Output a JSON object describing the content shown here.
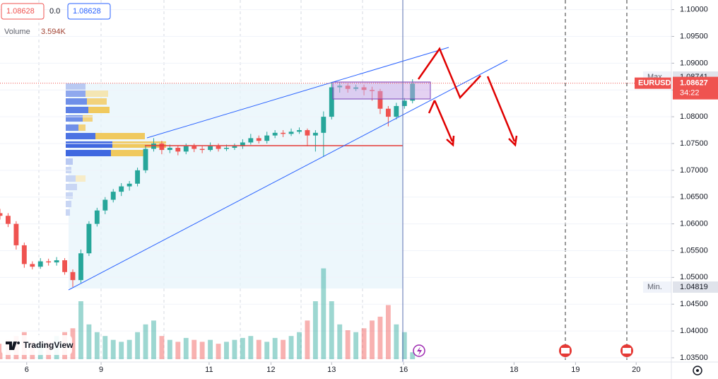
{
  "header": {
    "ohlc_open": "1.08628",
    "change": "0.0",
    "ohlc_close": "1.08628",
    "volume_label": "Volume",
    "volume_value": "3.594K",
    "logo": "TradingView"
  },
  "chart_data": {
    "type": "candlestick",
    "symbol": "EURUSD",
    "countdown": "34:22",
    "x": [
      0,
      2,
      4,
      6,
      8,
      10,
      12,
      14,
      16,
      18,
      20,
      22,
      24,
      26,
      28,
      30,
      32,
      34,
      36,
      38,
      40,
      42,
      44,
      46,
      48,
      50,
      52,
      54,
      56,
      58,
      60,
      62,
      64,
      66,
      68,
      70,
      72,
      74,
      76,
      78,
      80,
      82,
      84,
      86,
      88,
      90,
      92,
      94,
      96,
      98,
      100,
      102
    ],
    "open": [
      1.062,
      1.0615,
      1.06,
      1.056,
      1.0525,
      1.052,
      1.053,
      1.0528,
      1.0532,
      1.051,
      1.0495,
      1.0545,
      1.06,
      1.0625,
      1.0645,
      1.066,
      1.067,
      1.0675,
      1.07,
      1.074,
      1.075,
      1.0738,
      1.0742,
      1.0735,
      1.0745,
      1.074,
      1.0738,
      1.0745,
      1.074,
      1.0742,
      1.0745,
      1.0752,
      1.076,
      1.0755,
      1.0765,
      1.077,
      1.0768,
      1.0772,
      1.0775,
      1.0765,
      1.077,
      1.08,
      1.0855,
      1.0858,
      1.0852,
      1.0855,
      1.085,
      1.0848,
      1.0815,
      1.08,
      1.082,
      1.083
    ],
    "high": [
      1.0628,
      1.062,
      1.0605,
      1.0565,
      1.053,
      1.0536,
      1.0535,
      1.0538,
      1.0536,
      1.0515,
      1.0552,
      1.0605,
      1.063,
      1.065,
      1.0665,
      1.0676,
      1.068,
      1.0705,
      1.0745,
      1.076,
      1.0755,
      1.0748,
      1.0746,
      1.075,
      1.075,
      1.0745,
      1.0752,
      1.075,
      1.0748,
      1.075,
      1.0758,
      1.0768,
      1.0765,
      1.0772,
      1.0775,
      1.0775,
      1.0778,
      1.078,
      1.0778,
      1.0775,
      1.081,
      1.0865,
      1.0865,
      1.0862,
      1.086,
      1.086,
      1.0856,
      1.0852,
      1.082,
      1.0826,
      1.0835,
      1.087
    ],
    "low": [
      1.0608,
      1.0594,
      1.0552,
      1.0518,
      1.0515,
      1.0516,
      1.0522,
      1.0522,
      1.0505,
      1.0482,
      1.049,
      1.054,
      1.0595,
      1.0618,
      1.064,
      1.0652,
      1.0662,
      1.067,
      1.0695,
      1.0735,
      1.073,
      1.0732,
      1.0728,
      1.073,
      1.0734,
      1.0732,
      1.0735,
      1.0735,
      1.0736,
      1.0738,
      1.074,
      1.0748,
      1.075,
      1.075,
      1.076,
      1.0762,
      1.0764,
      1.0768,
      1.0745,
      1.0735,
      1.0725,
      1.0795,
      1.0845,
      1.0845,
      1.0848,
      1.084,
      1.083,
      1.0805,
      1.0782,
      1.0795,
      1.0815,
      1.0825
    ],
    "close": [
      1.0615,
      1.06,
      1.056,
      1.0525,
      1.052,
      1.053,
      1.0528,
      1.0532,
      1.051,
      1.0495,
      1.0545,
      1.06,
      1.0625,
      1.0645,
      1.066,
      1.067,
      1.0675,
      1.07,
      1.074,
      1.075,
      1.0738,
      1.0742,
      1.0735,
      1.0745,
      1.074,
      1.0738,
      1.0745,
      1.074,
      1.0742,
      1.0745,
      1.0752,
      1.076,
      1.0755,
      1.0765,
      1.077,
      1.0768,
      1.0772,
      1.0775,
      1.0765,
      1.077,
      1.08,
      1.0855,
      1.0858,
      1.0852,
      1.0855,
      1.085,
      1.0848,
      1.0815,
      1.08,
      1.082,
      1.083,
      1.0862
    ],
    "volume": [
      8,
      10,
      12,
      14,
      9,
      8,
      9,
      12,
      14,
      16,
      30,
      18,
      14,
      12,
      10,
      9,
      10,
      14,
      18,
      20,
      12,
      10,
      9,
      11,
      10,
      9,
      10,
      8,
      9,
      10,
      11,
      12,
      10,
      9,
      11,
      10,
      12,
      14,
      20,
      30,
      47,
      30,
      18,
      15,
      14,
      16,
      20,
      22,
      28,
      18,
      14,
      3.594
    ],
    "vlim": [
      0,
      180
    ],
    "up_color": "#26a69a",
    "down_color": "#ef5350",
    "xlim": [
      0,
      166
    ],
    "xticks": [
      {
        "value": 6.6,
        "label": "6"
      },
      {
        "value": 25,
        "label": "9"
      },
      {
        "value": 51.7,
        "label": "11"
      },
      {
        "value": 67,
        "label": "12"
      },
      {
        "value": 82,
        "label": "13"
      },
      {
        "value": 99.8,
        "label": "16"
      },
      {
        "value": 127.1,
        "label": "18"
      },
      {
        "value": 142.3,
        "label": "19"
      },
      {
        "value": 157.3,
        "label": "20"
      }
    ],
    "ylim": [
      1.0342,
      1.1018
    ],
    "yticks": [
      {
        "value": 1.1,
        "label": "1.10000"
      },
      {
        "value": 1.095,
        "label": "1.09500"
      },
      {
        "value": 1.09,
        "label": "1.09000"
      },
      {
        "value": 1.085,
        "label": "1.08500"
      },
      {
        "value": 1.08,
        "label": "1.08000"
      },
      {
        "value": 1.075,
        "label": "1.07500"
      },
      {
        "value": 1.07,
        "label": "1.07000"
      },
      {
        "value": 1.065,
        "label": "1.06500"
      },
      {
        "value": 1.06,
        "label": "1.06000"
      },
      {
        "value": 1.055,
        "label": "1.05500"
      },
      {
        "value": 1.05,
        "label": "1.05000"
      },
      {
        "value": 1.045,
        "label": "1.04500"
      },
      {
        "value": 1.04,
        "label": "1.04000"
      },
      {
        "value": 1.035,
        "label": "1.03500"
      }
    ],
    "grid": true,
    "max_label": "Max.",
    "max_value": 1.08741,
    "min_label": "Min.",
    "min_value": 1.04819,
    "last_price": 1.08627
  }
}
